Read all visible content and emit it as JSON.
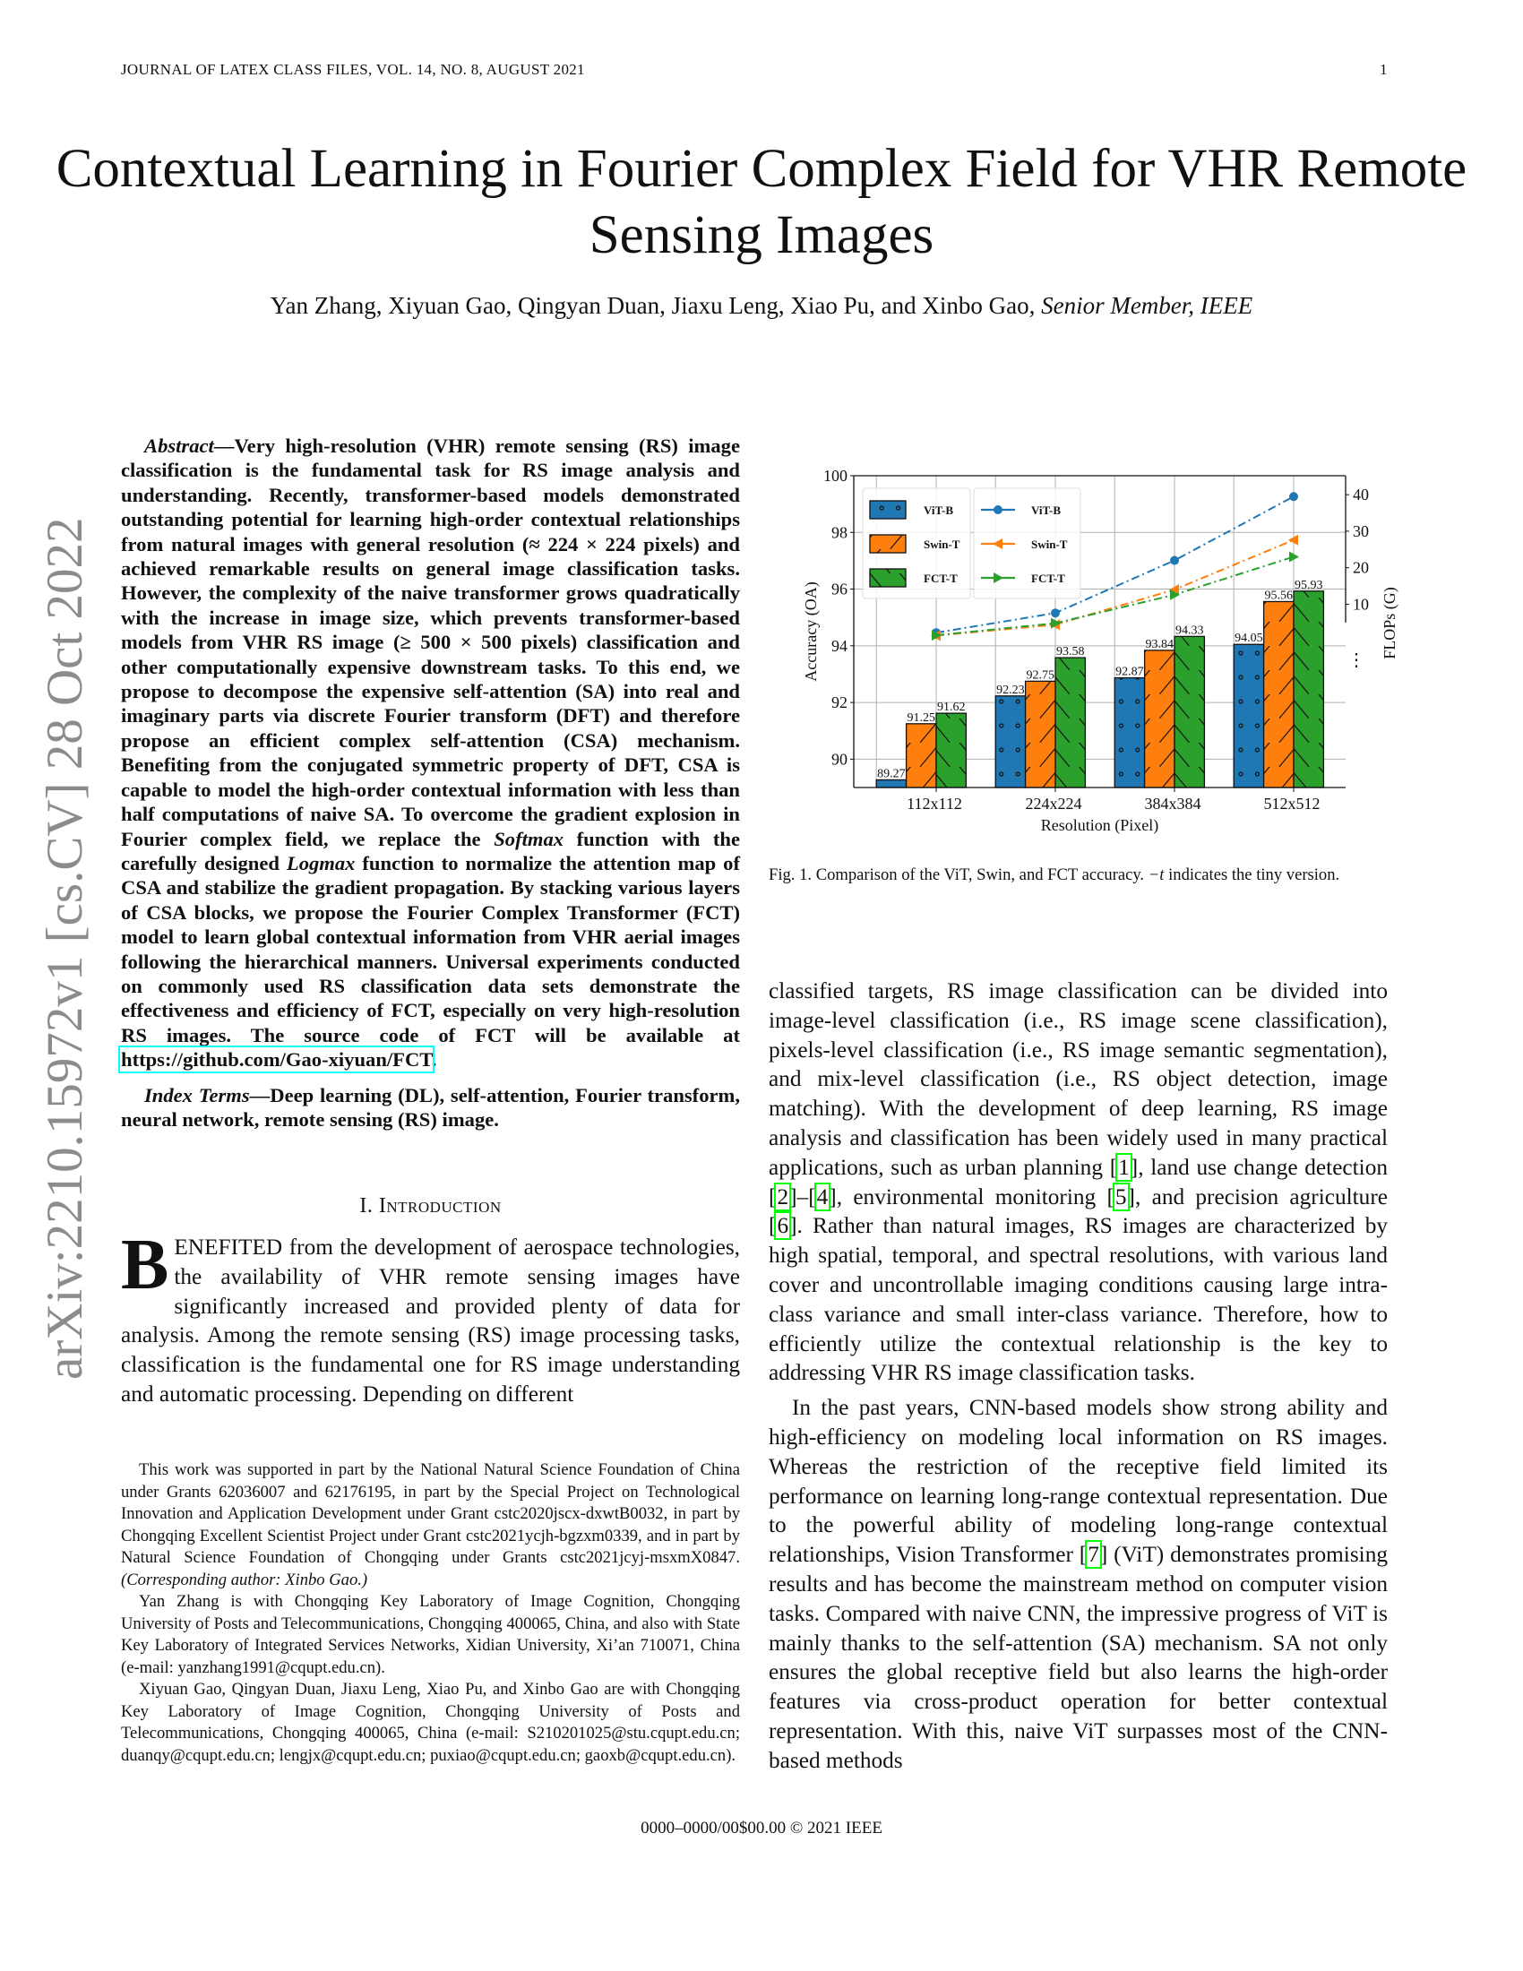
{
  "header": {
    "journal": "JOURNAL OF LATEX CLASS FILES, VOL. 14, NO. 8, AUGUST 2021",
    "page_number": "1"
  },
  "title": "Contextual Learning in Fourier Complex Field for VHR Remote Sensing Images",
  "authors": {
    "names": "Yan Zhang, Xiyuan Gao, Qingyan Duan, Jiaxu Leng, Xiao Pu, and Xinbo Gao, ",
    "suffix": "Senior Member, IEEE"
  },
  "arxiv_stamp": "arXiv:2210.15972v1  [cs.CV]  28 Oct 2022",
  "abstract": [
    {
      "t": "Abstract",
      "s": "i"
    },
    {
      "t": "—Very high-resolution (VHR) remote sensing (RS) image classification is the fundamental task for RS image analysis and understanding. Recently, transformer-based models demonstrated outstanding potential for learning high-order contextual relationships from natural images with general resolution (≈ 224 × 224 pixels) and achieved remarkable results on general image classification tasks. However, the complexity of the naive transformer grows quadratically with the increase in image size, which prevents transformer-based models from VHR RS image (≥ 500 × 500 pixels) classification and other computationally expensive downstream tasks. To this end, we propose to decompose the expensive self-attention (SA) into real and imaginary parts via discrete Fourier transform (DFT) and therefore propose an efficient complex self-attention (CSA) mechanism. Benefiting from the conjugated symmetric property of DFT, CSA is capable to model the high-order contextual information with less than half computations of naive SA. To overcome the gradient explosion in Fourier complex field, we replace the "
    },
    {
      "t": "Softmax",
      "s": "i"
    },
    {
      "t": " function with the carefully designed "
    },
    {
      "t": "Logmax",
      "s": "i"
    },
    {
      "t": " function to normalize the attention map of CSA and stabilize the gradient propagation. By stacking various layers of CSA blocks, we propose the Fourier Complex Transformer (FCT) model to learn global contextual information from VHR aerial images following the hierarchical manners. Universal experiments conducted on commonly used RS classification data sets demonstrate the effectiveness and efficiency of FCT, especially on very high-resolution RS images. The source code of FCT will be available at "
    },
    {
      "t": "https://github.com/Gao-xiyuan/FCT",
      "s": "link"
    },
    {
      "t": "."
    }
  ],
  "index_terms": [
    {
      "t": "Index Terms",
      "s": "i"
    },
    {
      "t": "—Deep learning (DL), self-attention, Fourier transform, neural network, remote sensing (RS) image."
    }
  ],
  "section": {
    "number": "I. ",
    "title": "Introduction"
  },
  "intro": {
    "dropcap": "B",
    "left": [
      {
        "t": "ENEFITED from the development of aerospace technologies, the availability of VHR remote sensing images have significantly increased and provided plenty of data for analysis. Among the remote sensing (RS) image processing tasks, classification is the fundamental one for RS image understanding and automatic processing. Depending on different"
      }
    ],
    "right_p1": [
      {
        "t": "classified targets, RS image classification can be divided into image-level classification (i.e., RS image scene classification), pixels-level classification (i.e., RS image semantic segmentation), and mix-level classification (i.e., RS object detection, image matching). With the development of deep learning, RS image analysis and classification has been widely used in many practical applications, such as urban planning "
      },
      {
        "t": "1",
        "s": "cite"
      },
      {
        "t": ", land use change detection "
      },
      {
        "t": "2",
        "s": "cite"
      },
      {
        "t": "–"
      },
      {
        "t": "4",
        "s": "cite"
      },
      {
        "t": ", environmental monitoring "
      },
      {
        "t": "5",
        "s": "cite"
      },
      {
        "t": ", and precision agriculture "
      },
      {
        "t": "6",
        "s": "cite"
      },
      {
        "t": ". Rather than natural images, RS images are characterized by high spatial, temporal, and spectral resolutions, with various land cover and uncontrollable imaging conditions causing large intra-class variance and small inter-class variance. Therefore, how to efficiently utilize the contextual relationship is the key to addressing VHR RS image classification tasks."
      }
    ],
    "right_p2": [
      {
        "t": "In the past years, CNN-based models show strong ability and high-efficiency on modeling local information on RS images. Whereas the restriction of the receptive field limited its performance on learning long-range contextual representation. Due to the powerful ability of modeling long-range contextual relationships, Vision Transformer "
      },
      {
        "t": "7",
        "s": "cite"
      },
      {
        "t": " (ViT) demonstrates promising results and has become the mainstream method on computer vision tasks. Compared with naive CNN, the impressive progress of ViT is mainly thanks to the self-attention (SA) mechanism. SA not only ensures the global receptive field but also learns the high-order features via cross-product operation for better contextual representation. With this, naive ViT surpasses most of the CNN-based methods"
      }
    ]
  },
  "footnotes": [
    [
      {
        "t": "This work was supported in part by the National Natural Science Foundation of China under Grants 62036007 and 62176195, in part by the Special Project on Technological Innovation and Application Development under Grant cstc2020jscx-dxwtB0032, in part by Chongqing Excellent Scientist Project under Grant cstc2021ycjh-bgzxm0339, and in part by Natural Science Foundation of Chongqing under Grants cstc2021jcyj-msxmX0847. "
      },
      {
        "t": "(Corresponding author: Xinbo Gao.)",
        "s": "i"
      }
    ],
    [
      {
        "t": "Yan Zhang is with Chongqing Key Laboratory of Image Cognition, Chongqing University of Posts and Telecommunications, Chongqing 400065, China, and also with State Key Laboratory of Integrated Services Networks, Xidian University, Xi’an 710071, China (e-mail: yanzhang1991@cqupt.edu.cn)."
      }
    ],
    [
      {
        "t": "Xiyuan Gao, Qingyan Duan, Jiaxu Leng, Xiao Pu, and Xinbo Gao are with Chongqing Key Laboratory of Image Cognition, Chongqing University of Posts and Telecommunications, Chongqing 400065, China (e-mail: S210201025@stu.cqupt.edu.cn; duanqy@cqupt.edu.cn; lengjx@cqupt.edu.cn; puxiao@cqupt.edu.cn; gaoxb@cqupt.edu.cn)."
      }
    ]
  ],
  "figure_caption": [
    {
      "t": "Fig. 1.  Comparison of the ViT, Swin, and FCT accuracy. "
    },
    {
      "t": "−t",
      "s": "i"
    },
    {
      "t": " indicates the tiny version."
    }
  ],
  "footer": "0000–0000/00$00.00 © 2021 IEEE",
  "chart_data": {
    "type": "bar+line",
    "categories": [
      "112x112",
      "224x224",
      "384x384",
      "512x512"
    ],
    "xlabel": "Resolution (Pixel)",
    "ylabel": "Accuracy (OA)",
    "y2label": "FLOPs (G)",
    "ylim": [
      89,
      100
    ],
    "yticks": [
      90,
      92,
      94,
      96,
      98,
      100
    ],
    "y2ticks": [
      10,
      20,
      30,
      40
    ],
    "y2_axis_break_marker": "⋮",
    "grid": true,
    "legend_placement": "top-left",
    "bar_series": [
      {
        "name": "ViT-B",
        "color": "#1f77b4",
        "hatch": "dots",
        "values": [
          89.27,
          92.23,
          92.87,
          94.05
        ],
        "labels": [
          "89.27",
          "92.23",
          "92.87",
          "94.05"
        ]
      },
      {
        "name": "Swin-T",
        "color": "#ff7f0e",
        "hatch": "forward-slash",
        "values": [
          91.25,
          92.75,
          93.84,
          95.56
        ],
        "labels": [
          "91.25",
          "92.75",
          "93.84",
          "95.56"
        ]
      },
      {
        "name": "FCT-T",
        "color": "#2ca02c",
        "hatch": "back-slash",
        "values": [
          91.62,
          93.58,
          94.33,
          95.93
        ],
        "labels": [
          "91.62",
          "93.58",
          "94.33",
          "95.93"
        ]
      }
    ],
    "line_series": [
      {
        "name": "ViT-B",
        "color": "#1f77b4",
        "marker": "circle",
        "values": [
          2.2,
          7.6,
          22,
          39.5
        ]
      },
      {
        "name": "Swin-T",
        "color": "#ff7f0e",
        "marker": "triangle-left",
        "values": [
          1.4,
          4.4,
          14,
          27.6
        ]
      },
      {
        "name": "FCT-T",
        "color": "#2ca02c",
        "marker": "triangle-right",
        "values": [
          1.5,
          4.8,
          12.6,
          23
        ]
      }
    ]
  }
}
